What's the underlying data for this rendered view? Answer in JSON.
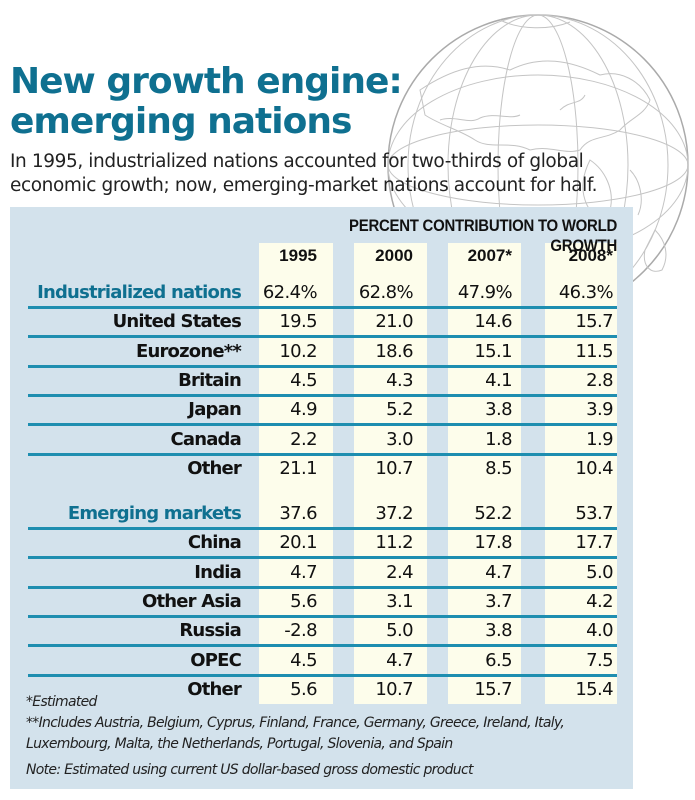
{
  "header": {
    "title_line1": "New growth engine:",
    "title_line2": "emerging nations",
    "subtitle_line1": "In 1995, industrialized nations accounted for two-thirds of global",
    "subtitle_line2": "economic growth; now, emerging-market nations account for half."
  },
  "colors": {
    "title": "#0f7090",
    "panel": "#d3e2ec",
    "column": "#fdfdeb",
    "rule": "#1e8eb0",
    "globe": "#b8b8b8"
  },
  "decoration": {
    "background_image": "globe-icon"
  },
  "chart_data": {
    "type": "table",
    "title": "New growth engine: emerging nations",
    "subtitle": "In 1995, industrialized nations accounted for two-thirds of global economic growth; now, emerging-market nations account for half.",
    "column_group_header": "PERCENT CONTRIBUTION TO WORLD GROWTH",
    "columns": [
      "1995",
      "2000",
      "2007*",
      "2008*"
    ],
    "units": "percent",
    "groups": [
      {
        "name": "Industrialized nations",
        "totals": [
          "62.4%",
          "62.8%",
          "47.9%",
          "46.3%"
        ],
        "rows": [
          {
            "name": "United States",
            "values": [
              "19.5",
              "21.0",
              "14.6",
              "15.7"
            ]
          },
          {
            "name": "Eurozone**",
            "values": [
              "10.2",
              "18.6",
              "15.1",
              "11.5"
            ]
          },
          {
            "name": "Britain",
            "values": [
              "4.5",
              "4.3",
              "4.1",
              "2.8"
            ]
          },
          {
            "name": "Japan",
            "values": [
              "4.9",
              "5.2",
              "3.8",
              "3.9"
            ]
          },
          {
            "name": "Canada",
            "values": [
              "2.2",
              "3.0",
              "1.8",
              "1.9"
            ]
          },
          {
            "name": "Other",
            "values": [
              "21.1",
              "10.7",
              "8.5",
              "10.4"
            ]
          }
        ]
      },
      {
        "name": "Emerging markets",
        "totals": [
          "37.6",
          "37.2",
          "52.2",
          "53.7"
        ],
        "rows": [
          {
            "name": "China",
            "values": [
              "20.1",
              "11.2",
              "17.8",
              "17.7"
            ]
          },
          {
            "name": "India",
            "values": [
              "4.7",
              "2.4",
              "4.7",
              "5.0"
            ]
          },
          {
            "name": "Other Asia",
            "values": [
              "5.6",
              "3.1",
              "3.7",
              "4.2"
            ]
          },
          {
            "name": "Russia",
            "values": [
              "-2.8",
              "5.0",
              "3.8",
              "4.0"
            ]
          },
          {
            "name": "OPEC",
            "values": [
              "4.5",
              "4.7",
              "6.5",
              "7.5"
            ]
          },
          {
            "name": "Other",
            "values": [
              "5.6",
              "10.7",
              "15.7",
              "15.4"
            ]
          }
        ]
      }
    ],
    "footnotes": [
      "*Estimated",
      "**Includes Austria, Belgium, Cyprus, Finland, France, Germany, Greece, Ireland, Italy,",
      "Luxembourg, Malta, the Netherlands, Portugal, Slovenia, and Spain"
    ],
    "note": "Note: Estimated using current US dollar-based gross domestic product"
  }
}
